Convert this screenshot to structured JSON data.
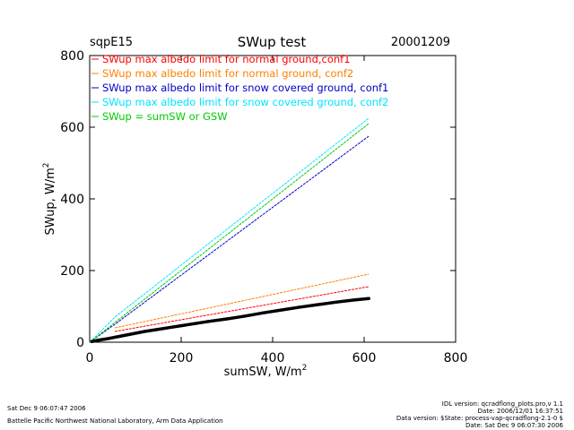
{
  "header": {
    "site": "sqpE15",
    "title": "SWup test",
    "date": "20001209"
  },
  "footer": {
    "left_line1": "Sat Dec  9 06:07:47 2006",
    "left_line2": "Battelle Pacific Northwest National Laboratory, Arm Data Application",
    "right_line1": "IDL version: qcradflong_plots.pro,v 1.1",
    "right_line2": "Date: 2006/12/01 16:37:51",
    "right_line3": "Data version: $State: process-vap-qcradflong-2.1-0 $",
    "right_line4": "Date: Sat Dec  9 06:07:30 2006"
  },
  "chart_data": {
    "type": "scatter",
    "title": "SWup test",
    "xlabel": "sumSW, W/m",
    "xlabel_sup": "2",
    "ylabel": "SWup, W/m",
    "ylabel_sup": "2",
    "xlim": [
      0,
      800
    ],
    "ylim": [
      0,
      800
    ],
    "xticks": [
      "0",
      "200",
      "400",
      "600",
      "800"
    ],
    "yticks": [
      "0",
      "200",
      "400",
      "600",
      "800"
    ],
    "grid": false,
    "legend_position": "top-left",
    "series": [
      {
        "name": "SWup max albedo limit for normal ground,conf1",
        "color": "#ff0000",
        "kind": "line",
        "points": [
          [
            55,
            30
          ],
          [
            610,
            155
          ]
        ]
      },
      {
        "name": "SWup max albedo limit for normal ground, conf2",
        "color": "#ff8000",
        "kind": "line",
        "points": [
          [
            55,
            40
          ],
          [
            610,
            190
          ]
        ]
      },
      {
        "name": "SWup max albedo limit for snow covered ground, conf1",
        "color": "#0000c8",
        "kind": "line",
        "points": [
          [
            0,
            0
          ],
          [
            55,
            50
          ],
          [
            610,
            575
          ]
        ]
      },
      {
        "name": "SWup max albedo limit for snow covered ground, conf2",
        "color": "#00e5ff",
        "kind": "line",
        "points": [
          [
            0,
            0
          ],
          [
            55,
            70
          ],
          [
            610,
            625
          ]
        ]
      },
      {
        "name": "SWup = sumSW or GSW",
        "color": "#00cc00",
        "kind": "line",
        "points": [
          [
            0,
            0
          ],
          [
            610,
            610
          ]
        ]
      },
      {
        "name": "",
        "color": "#000000",
        "kind": "points",
        "points": [
          [
            5,
            2
          ],
          [
            20,
            6
          ],
          [
            40,
            10
          ],
          [
            60,
            15
          ],
          [
            80,
            20
          ],
          [
            100,
            25
          ],
          [
            120,
            30
          ],
          [
            150,
            36
          ],
          [
            180,
            42
          ],
          [
            200,
            46
          ],
          [
            230,
            52
          ],
          [
            260,
            58
          ],
          [
            300,
            65
          ],
          [
            340,
            73
          ],
          [
            380,
            82
          ],
          [
            420,
            90
          ],
          [
            460,
            98
          ],
          [
            500,
            105
          ],
          [
            540,
            112
          ],
          [
            580,
            118
          ],
          [
            610,
            122
          ]
        ]
      }
    ]
  }
}
